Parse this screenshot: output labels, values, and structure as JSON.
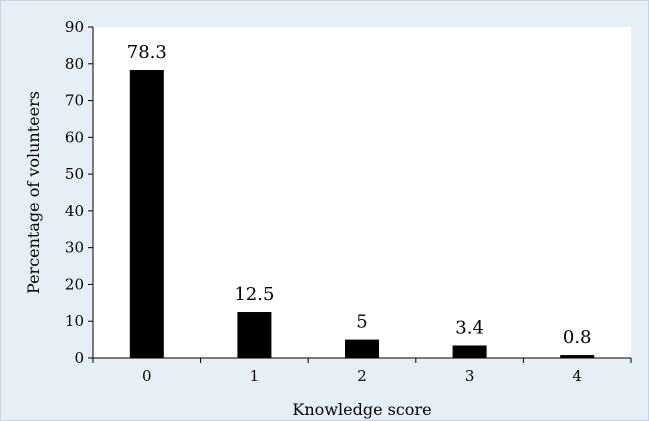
{
  "chart_data": {
    "type": "bar",
    "categories": [
      "0",
      "1",
      "2",
      "3",
      "4"
    ],
    "values": [
      78.3,
      12.5,
      5,
      3.4,
      0.8
    ],
    "data_labels": [
      "78.3",
      "12.5",
      "5",
      "3.4",
      "0.8"
    ],
    "title": "",
    "xlabel": "Knowledge score",
    "ylabel": "Percentage of volunteers",
    "ylim": [
      0,
      90
    ],
    "yticks": [
      0,
      10,
      20,
      30,
      40,
      50,
      60,
      70,
      80,
      90
    ],
    "grid": false,
    "legend": "none",
    "bar_color": "#000000",
    "plot_background": "#ffffff",
    "frame_background": "#e6eef6"
  }
}
